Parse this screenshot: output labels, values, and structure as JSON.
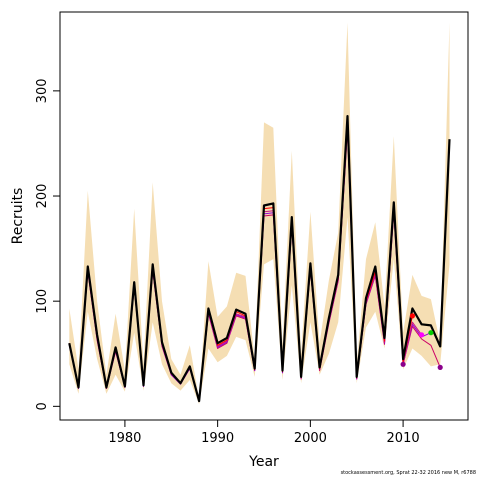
{
  "chart_data": {
    "type": "line",
    "xlabel": "Year",
    "ylabel": "Recruits",
    "xlim": [
      1973,
      2017
    ],
    "ylim": [
      -13,
      375
    ],
    "xticks": [
      1980,
      1990,
      2000,
      2010
    ],
    "yticks": [
      0,
      100,
      200,
      300
    ],
    "grid": false,
    "colors": {
      "band": "#f5deb3",
      "main": "#000000",
      "retro": [
        "#ff0000",
        "#c71585",
        "#9400d3",
        "#cc0066",
        "#800080"
      ],
      "endpoint": "#8b008b",
      "marker_2011": "#ff0000",
      "marker_2012": "#ff00ff",
      "marker_2013": "#00cc00"
    },
    "band": {
      "x": [
        1974,
        1975,
        1976,
        1977,
        1978,
        1979,
        1980,
        1981,
        1982,
        1983,
        1984,
        1985,
        1986,
        1987,
        1988,
        1989,
        1990,
        1991,
        1992,
        1993,
        1994,
        1995,
        1996,
        1997,
        1998,
        1999,
        2000,
        2001,
        2002,
        2003,
        2004,
        2005,
        2006,
        2007,
        2008,
        2009,
        2010,
        2011,
        2012,
        2013,
        2014,
        2015
      ],
      "lower": [
        40,
        12,
        90,
        45,
        12,
        30,
        14,
        70,
        15,
        80,
        40,
        22,
        15,
        25,
        2,
        55,
        42,
        48,
        66,
        63,
        28,
        135,
        140,
        25,
        115,
        22,
        80,
        30,
        50,
        80,
        180,
        22,
        75,
        90,
        55,
        140,
        35,
        55,
        48,
        38,
        40,
        135
      ],
      "upper": [
        93,
        35,
        205,
        100,
        30,
        88,
        34,
        188,
        40,
        213,
        100,
        45,
        30,
        58,
        7,
        138,
        85,
        95,
        127,
        124,
        45,
        270,
        265,
        58,
        243,
        50,
        185,
        60,
        120,
        165,
        365,
        40,
        140,
        175,
        95,
        257,
        70,
        125,
        105,
        102,
        60,
        365
      ]
    },
    "series": [
      {
        "x": [
          1974,
          1975,
          1976,
          1977,
          1978,
          1979,
          1980,
          1981,
          1982,
          1983,
          1984,
          1985,
          1986,
          1987,
          1988,
          1989,
          1990,
          1991,
          1992,
          1993,
          1994,
          1995,
          1996,
          1997,
          1998,
          1999,
          2000,
          2001,
          2002,
          2003,
          2004,
          2005,
          2006,
          2007,
          2008,
          2009,
          2010,
          2011,
          2012,
          2013,
          2014,
          2015
        ],
        "values": [
          60,
          18,
          133,
          68,
          18,
          56,
          19,
          118,
          20,
          135,
          61,
          32,
          22,
          38,
          5,
          93,
          60,
          65,
          92,
          88,
          36,
          191,
          193,
          34,
          180,
          28,
          136,
          37,
          84,
          125,
          276,
          28,
          103,
          133,
          65,
          194,
          45,
          93,
          78,
          77,
          57,
          254
        ]
      },
      {
        "x": [
          1974,
          1975,
          1976,
          1977,
          1978,
          1979,
          1980,
          1981,
          1982,
          1983,
          1984,
          1985,
          1986,
          1987,
          1988,
          1989,
          1990,
          1991,
          1992,
          1993,
          1994,
          1995,
          1996,
          1997,
          1998,
          1999,
          2000,
          2001,
          2002,
          2003,
          2004,
          2005,
          2006,
          2007,
          2008,
          2009,
          2010,
          2011
        ],
        "values": [
          60,
          18,
          131,
          66,
          18,
          55,
          19,
          116,
          20,
          133,
          60,
          31,
          22,
          37,
          5,
          91,
          58,
          63,
          90,
          86,
          35,
          188,
          189,
          33,
          177,
          28,
          134,
          36,
          82,
          122,
          272,
          27,
          100,
          128,
          62,
          190,
          42,
          86
        ]
      },
      {
        "x": [
          1974,
          1975,
          1976,
          1977,
          1978,
          1979,
          1980,
          1981,
          1982,
          1983,
          1984,
          1985,
          1986,
          1987,
          1988,
          1989,
          1990,
          1991,
          1992,
          1993,
          1994,
          1995,
          1996,
          1997,
          1998,
          1999,
          2000,
          2001,
          2002,
          2003,
          2004,
          2005,
          2006,
          2007,
          2008,
          2009,
          2010,
          2011,
          2012
        ],
        "values": [
          59,
          18,
          130,
          65,
          17,
          54,
          19,
          115,
          20,
          131,
          59,
          31,
          22,
          37,
          5,
          90,
          57,
          62,
          88,
          85,
          35,
          185,
          186,
          33,
          175,
          27,
          132,
          35,
          81,
          121,
          268,
          27,
          99,
          126,
          61,
          188,
          40,
          80,
          68
        ]
      },
      {
        "x": [
          1974,
          1975,
          1976,
          1977,
          1978,
          1979,
          1980,
          1981,
          1982,
          1983,
          1984,
          1985,
          1986,
          1987,
          1988,
          1989,
          1990,
          1991,
          1992,
          1993,
          1994,
          1995,
          1996,
          1997,
          1998,
          1999,
          2000,
          2001,
          2002,
          2003,
          2004,
          2005,
          2006,
          2007,
          2008,
          2009,
          2010,
          2011,
          2012,
          2013
        ],
        "values": [
          59,
          17,
          129,
          64,
          17,
          53,
          18,
          114,
          19,
          130,
          58,
          30,
          21,
          36,
          5,
          89,
          56,
          61,
          87,
          84,
          34,
          183,
          184,
          32,
          173,
          27,
          131,
          35,
          80,
          120,
          265,
          26,
          98,
          125,
          60,
          186,
          40,
          78,
          66,
          70
        ]
      },
      {
        "x": [
          1974,
          1975,
          1976,
          1977,
          1978,
          1979,
          1980,
          1981,
          1982,
          1983,
          1984,
          1985,
          1986,
          1987,
          1988,
          1989,
          1990,
          1991,
          1992,
          1993,
          1994,
          1995,
          1996,
          1997,
          1998,
          1999,
          2000,
          2001,
          2002,
          2003,
          2004,
          2005,
          2006,
          2007,
          2008,
          2009,
          2010,
          2011,
          2012,
          2013,
          2014
        ],
        "values": [
          58,
          17,
          128,
          63,
          17,
          52,
          18,
          113,
          19,
          129,
          57,
          30,
          21,
          36,
          5,
          88,
          55,
          60,
          86,
          83,
          34,
          181,
          182,
          32,
          171,
          26,
          130,
          34,
          79,
          119,
          262,
          26,
          97,
          124,
          59,
          184,
          40,
          76,
          64,
          58,
          37
        ]
      }
    ],
    "markers": [
      {
        "x": 2010,
        "y": 40,
        "color": "endpoint"
      },
      {
        "x": 2011,
        "y": 86,
        "color": "marker_2011"
      },
      {
        "x": 2012,
        "y": 68,
        "color": "marker_2012"
      },
      {
        "x": 2013,
        "y": 70,
        "color": "marker_2013"
      },
      {
        "x": 2014,
        "y": 37,
        "color": "endpoint"
      }
    ]
  },
  "footnote": "stockassessment.org, Sprat 22-32 2016 new M, r6788"
}
